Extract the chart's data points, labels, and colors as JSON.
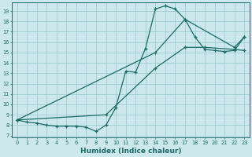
{
  "xlabel": "Humidex (Indice chaleur)",
  "bg_color": "#cce8ec",
  "grid_color": "#9ecdd4",
  "line_color": "#1a6b65",
  "xlim": [
    -0.5,
    23.5
  ],
  "ylim": [
    6.8,
    19.8
  ],
  "yticks": [
    7,
    8,
    9,
    10,
    11,
    12,
    13,
    14,
    15,
    16,
    17,
    18,
    19
  ],
  "xticks": [
    0,
    1,
    2,
    3,
    4,
    5,
    6,
    7,
    8,
    9,
    10,
    11,
    12,
    13,
    14,
    15,
    16,
    17,
    18,
    19,
    20,
    21,
    22,
    23
  ],
  "line1_x": [
    0,
    1,
    2,
    3,
    4,
    5,
    6,
    7,
    8,
    9,
    10,
    11,
    12,
    13,
    14,
    15,
    16,
    17,
    18,
    19,
    20,
    21,
    22,
    23
  ],
  "line1_y": [
    8.5,
    8.3,
    8.2,
    8.0,
    7.9,
    7.9,
    7.9,
    7.8,
    7.4,
    8.0,
    9.7,
    13.2,
    13.1,
    15.4,
    19.2,
    19.5,
    19.2,
    18.2,
    16.5,
    15.3,
    15.2,
    15.1,
    15.2,
    16.5
  ],
  "line2_x": [
    0,
    14,
    17,
    22,
    23
  ],
  "line2_y": [
    8.5,
    15.0,
    18.2,
    15.5,
    16.5
  ],
  "line3_x": [
    0,
    9,
    14,
    17,
    19,
    22,
    23
  ],
  "line3_y": [
    8.5,
    9.0,
    13.5,
    15.5,
    15.5,
    15.3,
    15.2
  ]
}
